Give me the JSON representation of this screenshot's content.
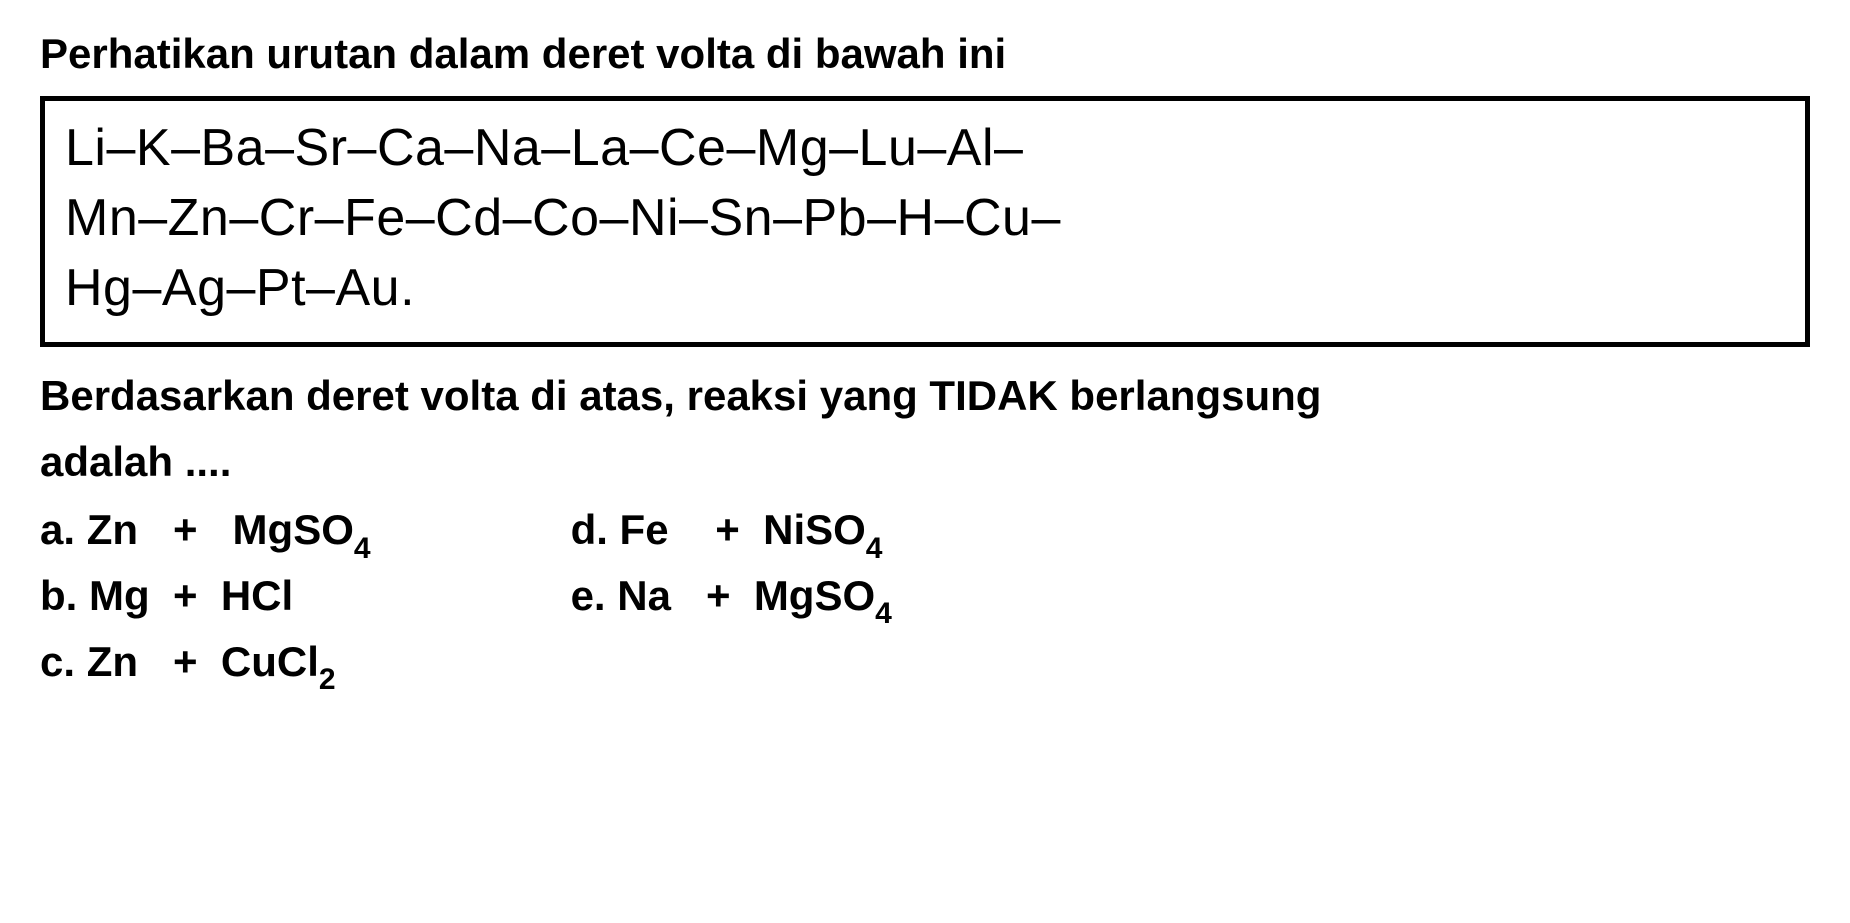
{
  "intro": "Perhatikan urutan dalam deret volta di bawah ini",
  "volta": {
    "line1": "Li–K–Ba–Sr–Ca–Na–La–Ce–Mg–Lu–Al–",
    "line2": "Mn–Zn–Cr–Fe–Cd–Co–Ni–Sn–Pb–H–Cu–",
    "line3": "Hg–Ag–Pt–Au."
  },
  "question": {
    "line1": "Berdasarkan deret volta di atas, reaksi yang TIDAK berlangsung",
    "line2": "adalah ...."
  },
  "options": {
    "a": {
      "prefix": "a. Zn   +   MgSO",
      "sub": "4"
    },
    "b": {
      "prefix": "b. Mg  +  HCl",
      "sub": ""
    },
    "c": {
      "prefix": "c. Zn   +  CuCl",
      "sub": "2"
    },
    "d": {
      "prefix": "d. Fe    +  NiSO",
      "sub": "4"
    },
    "e": {
      "prefix": "e. Na   +  MgSO",
      "sub": "4"
    }
  },
  "styles": {
    "background_color": "#ffffff",
    "text_color": "#000000",
    "border_color": "#000000",
    "intro_fontsize": 42,
    "volta_fontsize": 52,
    "question_fontsize": 42,
    "option_fontsize": 42,
    "subscript_fontsize": 30,
    "border_width": 5,
    "font_weight": "bold"
  }
}
